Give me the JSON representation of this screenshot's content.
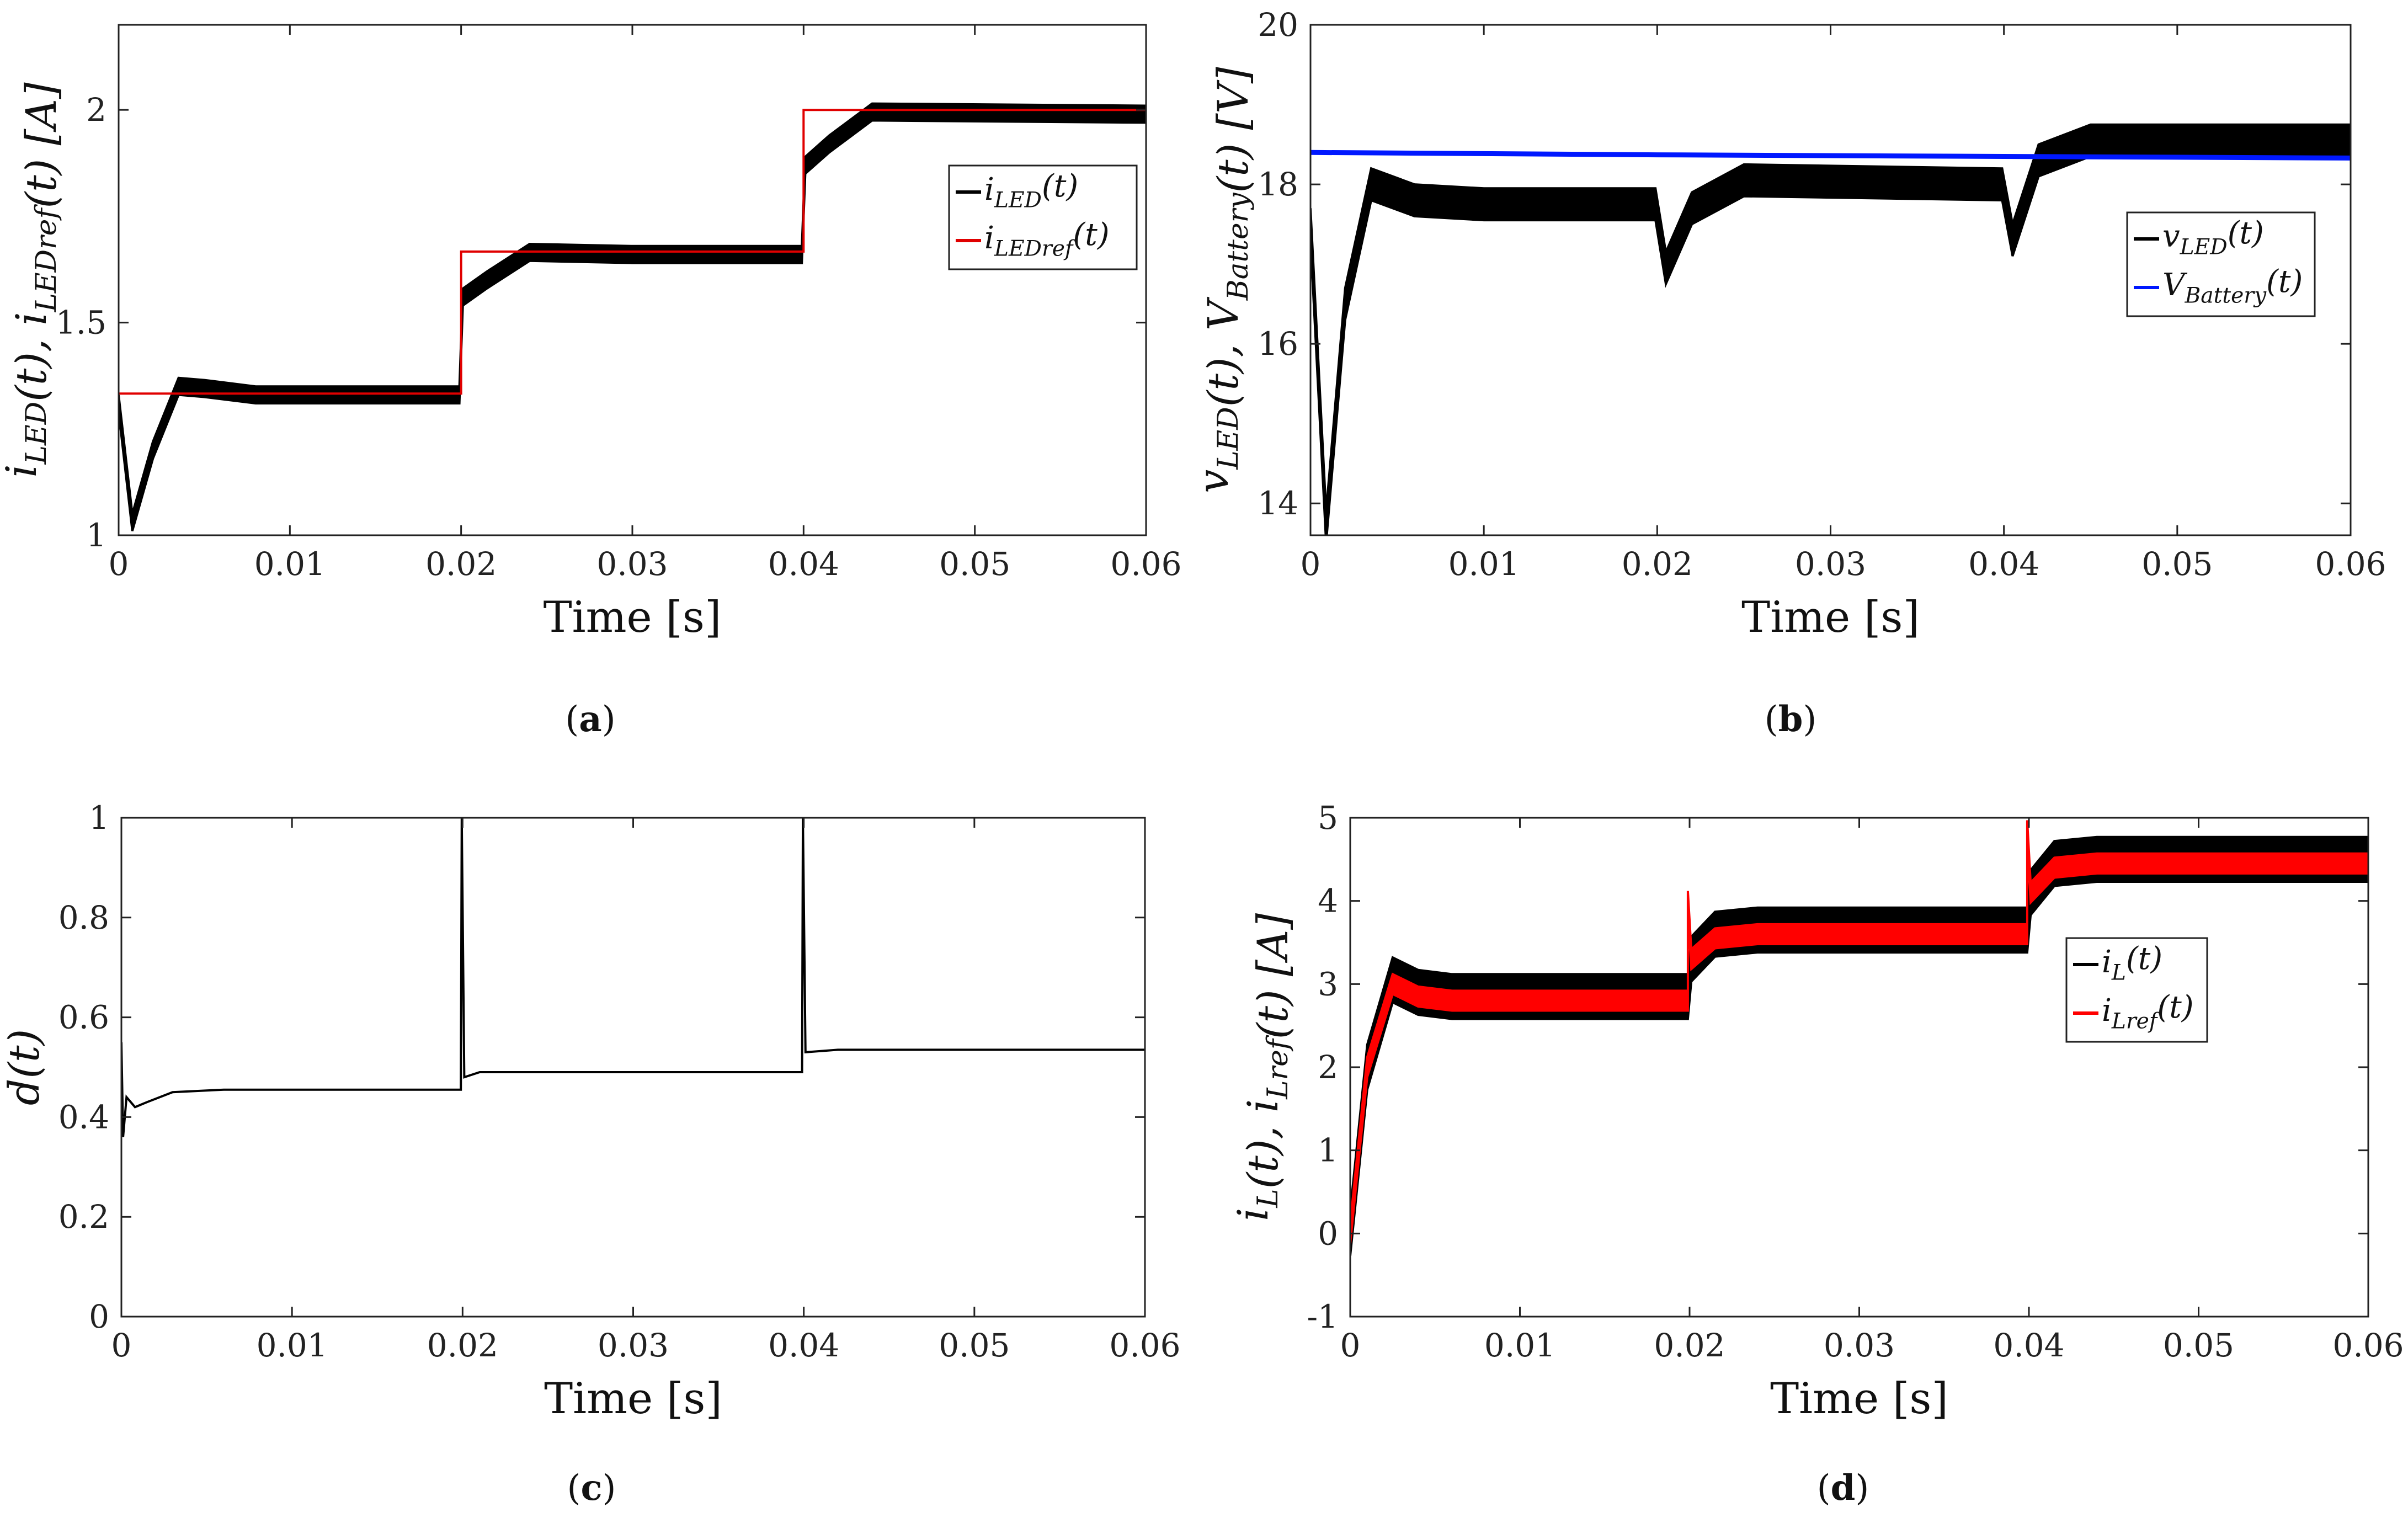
{
  "chart_data": [
    {
      "id": "a",
      "type": "line",
      "caption": "(a)",
      "xlabel": "Time [s]",
      "ylabel": "i_LED(t), i_LEDref(t)  [A]",
      "xlim": [
        0,
        0.06
      ],
      "ylim": [
        1,
        2.2
      ],
      "xticks": [
        0,
        0.01,
        0.02,
        0.03,
        0.04,
        0.05,
        0.06
      ],
      "xtick_labels": [
        "0",
        "0.01",
        "0.02",
        "0.03",
        "0.04",
        "0.05",
        "0.06"
      ],
      "yticks": [
        1,
        1.5,
        2
      ],
      "ytick_labels": [
        "1",
        "1.5",
        "2"
      ],
      "legend_position": "right",
      "series": [
        {
          "name": "i_LED(t)",
          "label_main": "i",
          "label_sub": "LED",
          "label_suffix": "(t)",
          "color": "#000000",
          "style": "band",
          "points": [
            [
              0,
              1.31
            ],
            [
              0.0008,
              1.03
            ],
            [
              0.002,
              1.2
            ],
            [
              0.0035,
              1.35
            ],
            [
              0.005,
              1.345
            ],
            [
              0.008,
              1.33
            ],
            [
              0.0199,
              1.33
            ],
            [
              0.0201,
              1.56
            ],
            [
              0.0215,
              1.6
            ],
            [
              0.024,
              1.665
            ],
            [
              0.03,
              1.66
            ],
            [
              0.0399,
              1.66
            ],
            [
              0.0401,
              1.87
            ],
            [
              0.0415,
              1.92
            ],
            [
              0.044,
              1.995
            ],
            [
              0.06,
              1.99
            ]
          ],
          "ripple": 0.02
        },
        {
          "name": "i_LEDref(t)",
          "label_main": "i",
          "label_sub": "LEDref",
          "label_suffix": "(t)",
          "color": "#e00000",
          "style": "line",
          "points": [
            [
              0,
              1.333
            ],
            [
              0.02,
              1.333
            ],
            [
              0.02,
              1.667
            ],
            [
              0.04,
              1.667
            ],
            [
              0.04,
              2.0
            ],
            [
              0.06,
              2.0
            ]
          ]
        }
      ]
    },
    {
      "id": "b",
      "type": "line",
      "caption": "(b)",
      "xlabel": "Time [s]",
      "ylabel": "v_LED(t), V_Battery(t)  [V]",
      "xlim": [
        0,
        0.06
      ],
      "ylim": [
        13.6,
        20
      ],
      "xticks": [
        0,
        0.01,
        0.02,
        0.03,
        0.04,
        0.05,
        0.06
      ],
      "xtick_labels": [
        "0",
        "0.01",
        "0.02",
        "0.03",
        "0.04",
        "0.05",
        "0.06"
      ],
      "yticks": [
        14,
        16,
        18,
        20
      ],
      "ytick_labels": [
        "14",
        "16",
        "18",
        "20"
      ],
      "legend_position": "right",
      "series": [
        {
          "name": "v_LED(t)",
          "label_main": "v",
          "label_sub": "LED",
          "label_suffix": "(t)",
          "color": "#000000",
          "style": "band",
          "points": [
            [
              0,
              17.5
            ],
            [
              0.0009,
              13.7
            ],
            [
              0.002,
              16.5
            ],
            [
              0.0035,
              18.0
            ],
            [
              0.006,
              17.8
            ],
            [
              0.01,
              17.75
            ],
            [
              0.0199,
              17.75
            ],
            [
              0.0205,
              16.95
            ],
            [
              0.022,
              17.7
            ],
            [
              0.025,
              18.05
            ],
            [
              0.0399,
              18.0
            ],
            [
              0.0405,
              17.3
            ],
            [
              0.042,
              18.3
            ],
            [
              0.045,
              18.55
            ],
            [
              0.06,
              18.55
            ]
          ],
          "ripple": 0.2
        },
        {
          "name": "V_Battery(t)",
          "label_main": "V",
          "label_sub": "Battery",
          "label_suffix": "(t)",
          "color": "#0018ff",
          "style": "line",
          "points": [
            [
              0,
              18.4
            ],
            [
              0.02,
              18.37
            ],
            [
              0.04,
              18.35
            ],
            [
              0.06,
              18.33
            ]
          ]
        }
      ]
    },
    {
      "id": "c",
      "type": "line",
      "caption": "(c)",
      "xlabel": "Time [s]",
      "ylabel": "d(t)",
      "xlim": [
        0,
        0.06
      ],
      "ylim": [
        0,
        1
      ],
      "xticks": [
        0,
        0.01,
        0.02,
        0.03,
        0.04,
        0.05,
        0.06
      ],
      "xtick_labels": [
        "0",
        "0.01",
        "0.02",
        "0.03",
        "0.04",
        "0.05",
        "0.06"
      ],
      "yticks": [
        0,
        0.2,
        0.4,
        0.6,
        0.8,
        1
      ],
      "ytick_labels": [
        "0",
        "0.2",
        "0.4",
        "0.6",
        "0.8",
        "1"
      ],
      "legend_position": "none",
      "series": [
        {
          "name": "d(t)",
          "color": "#000000",
          "style": "line",
          "points": [
            [
              0,
              0.55
            ],
            [
              0.0001,
              0.36
            ],
            [
              0.0003,
              0.44
            ],
            [
              0.0008,
              0.42
            ],
            [
              0.0015,
              0.43
            ],
            [
              0.003,
              0.45
            ],
            [
              0.006,
              0.455
            ],
            [
              0.0199,
              0.455
            ],
            [
              0.01995,
              1.0
            ],
            [
              0.0201,
              0.48
            ],
            [
              0.021,
              0.49
            ],
            [
              0.0399,
              0.49
            ],
            [
              0.03995,
              1.0
            ],
            [
              0.0401,
              0.53
            ],
            [
              0.042,
              0.535
            ],
            [
              0.06,
              0.535
            ]
          ]
        }
      ]
    },
    {
      "id": "d",
      "type": "line",
      "caption": "(d)",
      "xlabel": "Time [s]",
      "ylabel": "i_L(t), i_Lref(t)  [A]",
      "xlim": [
        0,
        0.06
      ],
      "ylim": [
        -1,
        5
      ],
      "xticks": [
        0,
        0.01,
        0.02,
        0.03,
        0.04,
        0.05,
        0.06
      ],
      "xtick_labels": [
        "0",
        "0.01",
        "0.02",
        "0.03",
        "0.04",
        "0.05",
        "0.06"
      ],
      "yticks": [
        -1,
        0,
        1,
        2,
        3,
        4,
        5
      ],
      "ytick_labels": [
        "-1",
        "0",
        "1",
        "2",
        "3",
        "4",
        "5"
      ],
      "legend_position": "right",
      "series": [
        {
          "name": "i_L(t)",
          "label_main": "i",
          "label_sub": "L",
          "label_suffix": "(t)",
          "color": "#000000",
          "style": "band",
          "points": [
            [
              0,
              0
            ],
            [
              0.001,
              2.0
            ],
            [
              0.0025,
              3.05
            ],
            [
              0.004,
              2.9
            ],
            [
              0.006,
              2.85
            ],
            [
              0.0199,
              2.85
            ],
            [
              0.0201,
              3.3
            ],
            [
              0.0215,
              3.6
            ],
            [
              0.024,
              3.65
            ],
            [
              0.0399,
              3.65
            ],
            [
              0.0401,
              4.1
            ],
            [
              0.0415,
              4.45
            ],
            [
              0.044,
              4.5
            ],
            [
              0.06,
              4.5
            ]
          ],
          "ripple": 0.27
        },
        {
          "name": "i_Lref(t)",
          "label_main": "i",
          "label_sub": "Lref",
          "label_suffix": "(t)",
          "color": "#ff0000",
          "style": "band",
          "points": [
            [
              0,
              0
            ],
            [
              0.001,
              2.0
            ],
            [
              0.0025,
              3.0
            ],
            [
              0.004,
              2.85
            ],
            [
              0.006,
              2.8
            ],
            [
              0.0199,
              2.8
            ],
            [
              0.0199,
              4.0
            ],
            [
              0.0201,
              3.3
            ],
            [
              0.0215,
              3.55
            ],
            [
              0.024,
              3.6
            ],
            [
              0.0399,
              3.6
            ],
            [
              0.0399,
              4.85
            ],
            [
              0.0401,
              4.1
            ],
            [
              0.0415,
              4.4
            ],
            [
              0.044,
              4.45
            ],
            [
              0.06,
              4.45
            ]
          ],
          "ripple": 0.12
        }
      ]
    }
  ]
}
